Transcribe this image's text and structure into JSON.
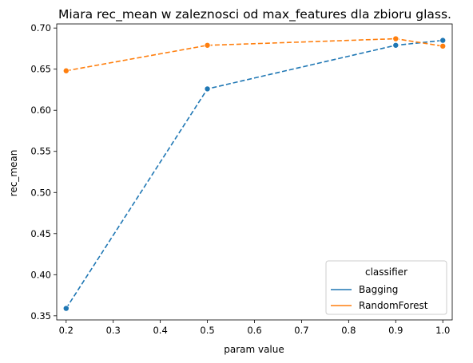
{
  "chart_data": {
    "type": "line",
    "title": "Miara rec_mean w zaleznosci od max_features dla zbioru glass.",
    "xlabel": "param value",
    "ylabel": "rec_mean",
    "xlim": [
      0.18,
      1.02
    ],
    "ylim": [
      0.345,
      0.705
    ],
    "xticks": [
      0.2,
      0.3,
      0.4,
      0.5,
      0.6,
      0.7,
      0.8,
      0.9,
      1.0
    ],
    "xtick_labels": [
      "0.2",
      "0.3",
      "0.4",
      "0.5",
      "0.6",
      "0.7",
      "0.8",
      "0.9",
      "1.0"
    ],
    "yticks": [
      0.35,
      0.4,
      0.45,
      0.5,
      0.55,
      0.6,
      0.65,
      0.7
    ],
    "ytick_labels": [
      "0.35",
      "0.40",
      "0.45",
      "0.50",
      "0.55",
      "0.60",
      "0.65",
      "0.70"
    ],
    "grid": false,
    "line_style": "dashed",
    "marker": "circle",
    "legend": {
      "title": "classifier",
      "placement": "lower-right"
    },
    "series": [
      {
        "name": "Bagging",
        "color": "#1f77b4",
        "x": [
          0.2,
          0.5,
          0.9,
          1.0
        ],
        "y": [
          0.359,
          0.626,
          0.679,
          0.685
        ]
      },
      {
        "name": "RandomForest",
        "color": "#ff7f0e",
        "x": [
          0.2,
          0.5,
          0.9,
          1.0
        ],
        "y": [
          0.648,
          0.679,
          0.687,
          0.678
        ]
      }
    ]
  }
}
